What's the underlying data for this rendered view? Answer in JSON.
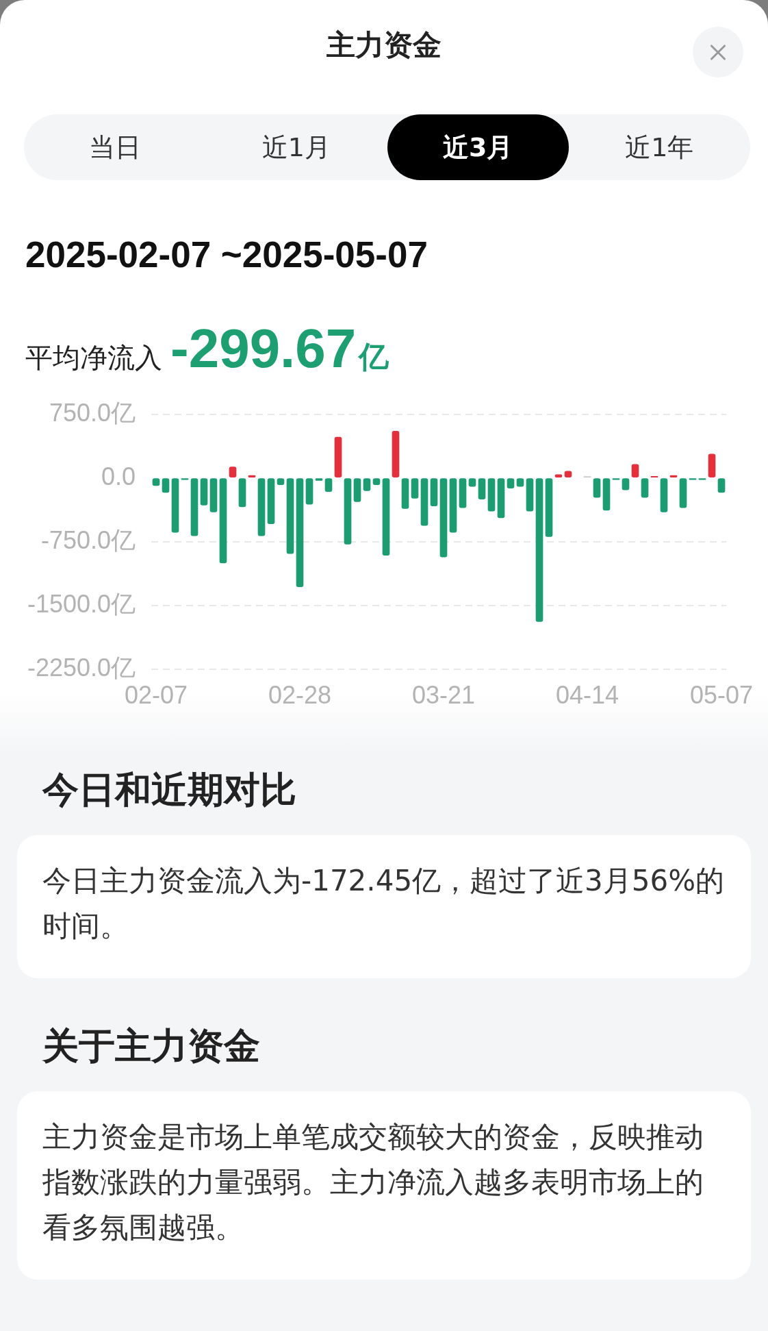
{
  "chart_data": [
    {
      "type": "bar",
      "title": "主力资金",
      "subtitle": "2025-02-07 ~2025-05-07",
      "annotations": [
        "当日",
        "近1月",
        "近3月",
        "近1年",
        "平均净流入",
        "-299.67亿"
      ],
      "categories": [
        "02-07",
        null,
        null,
        null,
        null,
        null,
        null,
        null,
        null,
        null,
        null,
        null,
        null,
        null,
        null,
        "02-28",
        null,
        null,
        null,
        null,
        null,
        null,
        null,
        null,
        null,
        null,
        null,
        null,
        null,
        null,
        "03-21",
        null,
        null,
        null,
        null,
        null,
        null,
        null,
        null,
        null,
        null,
        null,
        null,
        null,
        null,
        "04-14",
        null,
        null,
        null,
        null,
        null,
        null,
        null,
        null,
        null,
        null,
        null,
        null,
        null,
        "05-07"
      ],
      "values": [
        -90,
        -170,
        -640,
        -20,
        -680,
        -320,
        -400,
        -1000,
        130,
        -340,
        30,
        -680,
        -540,
        -80,
        -890,
        -1280,
        -310,
        -30,
        -160,
        480,
        -780,
        -280,
        -150,
        -80,
        -910,
        550,
        -360,
        -240,
        -560,
        -330,
        -930,
        -640,
        -350,
        -100,
        -250,
        -390,
        -470,
        -120,
        -100,
        -390,
        -1690,
        -690,
        40,
        80,
        null,
        10,
        -230,
        -380,
        -20,
        -140,
        160,
        -230,
        20,
        -400,
        30,
        -350,
        -20,
        -20,
        280,
        -170
      ],
      "colors": [
        "#1b9c71",
        "#1b9c71",
        "#1b9c71",
        "#1b9c71",
        "#1b9c71",
        "#1b9c71",
        "#1b9c71",
        "#1b9c71",
        "#e3303c",
        "#1b9c71",
        "#e3303c",
        "#1b9c71",
        "#1b9c71",
        "#1b9c71",
        "#1b9c71",
        "#1b9c71",
        "#1b9c71",
        "#1b9c71",
        "#1b9c71",
        "#e3303c",
        "#1b9c71",
        "#1b9c71",
        "#1b9c71",
        "#1b9c71",
        "#1b9c71",
        "#e3303c",
        "#1b9c71",
        "#1b9c71",
        "#1b9c71",
        "#1b9c71",
        "#1b9c71",
        "#1b9c71",
        "#1b9c71",
        "#1b9c71",
        "#1b9c71",
        "#1b9c71",
        "#1b9c71",
        "#1b9c71",
        "#1b9c71",
        "#1b9c71",
        "#1b9c71",
        "#1b9c71",
        "#e3303c",
        "#e3303c",
        "#1b9c71",
        "#c9c9c9",
        "#1b9c71",
        "#1b9c71",
        "#1b9c71",
        "#1b9c71",
        "#e3303c",
        "#1b9c71",
        "#e3303c",
        "#1b9c71",
        "#e3303c",
        "#1b9c71",
        "#1b9c71",
        "#1b9c71",
        "#e3303c",
        "#1b9c71"
      ],
      "ylim": [
        -2250,
        750
      ],
      "yticks": [
        {
          "value": -2250,
          "label": "-2250.0亿"
        },
        {
          "value": -1500,
          "label": "-1500.0亿"
        },
        {
          "value": -750,
          "label": "-750.0亿"
        },
        {
          "value": 0,
          "label": "0.0"
        },
        {
          "value": 750,
          "label": "750.0亿"
        }
      ],
      "grid": "y"
    },
    {
      "type": "other",
      "title": "今日和近期对比",
      "annotations": [
        "今日主力资金流入为-172.45亿，超过了近3月56%的时间。"
      ]
    },
    {
      "type": "other",
      "title": "关于主力资金",
      "annotations": [
        "主力资金是市场上单笔成交额较大的资金，反映推动指数涨跌的力量强弱。主力净流入越多表明市场上的看多氛围越强。"
      ]
    }
  ]
}
